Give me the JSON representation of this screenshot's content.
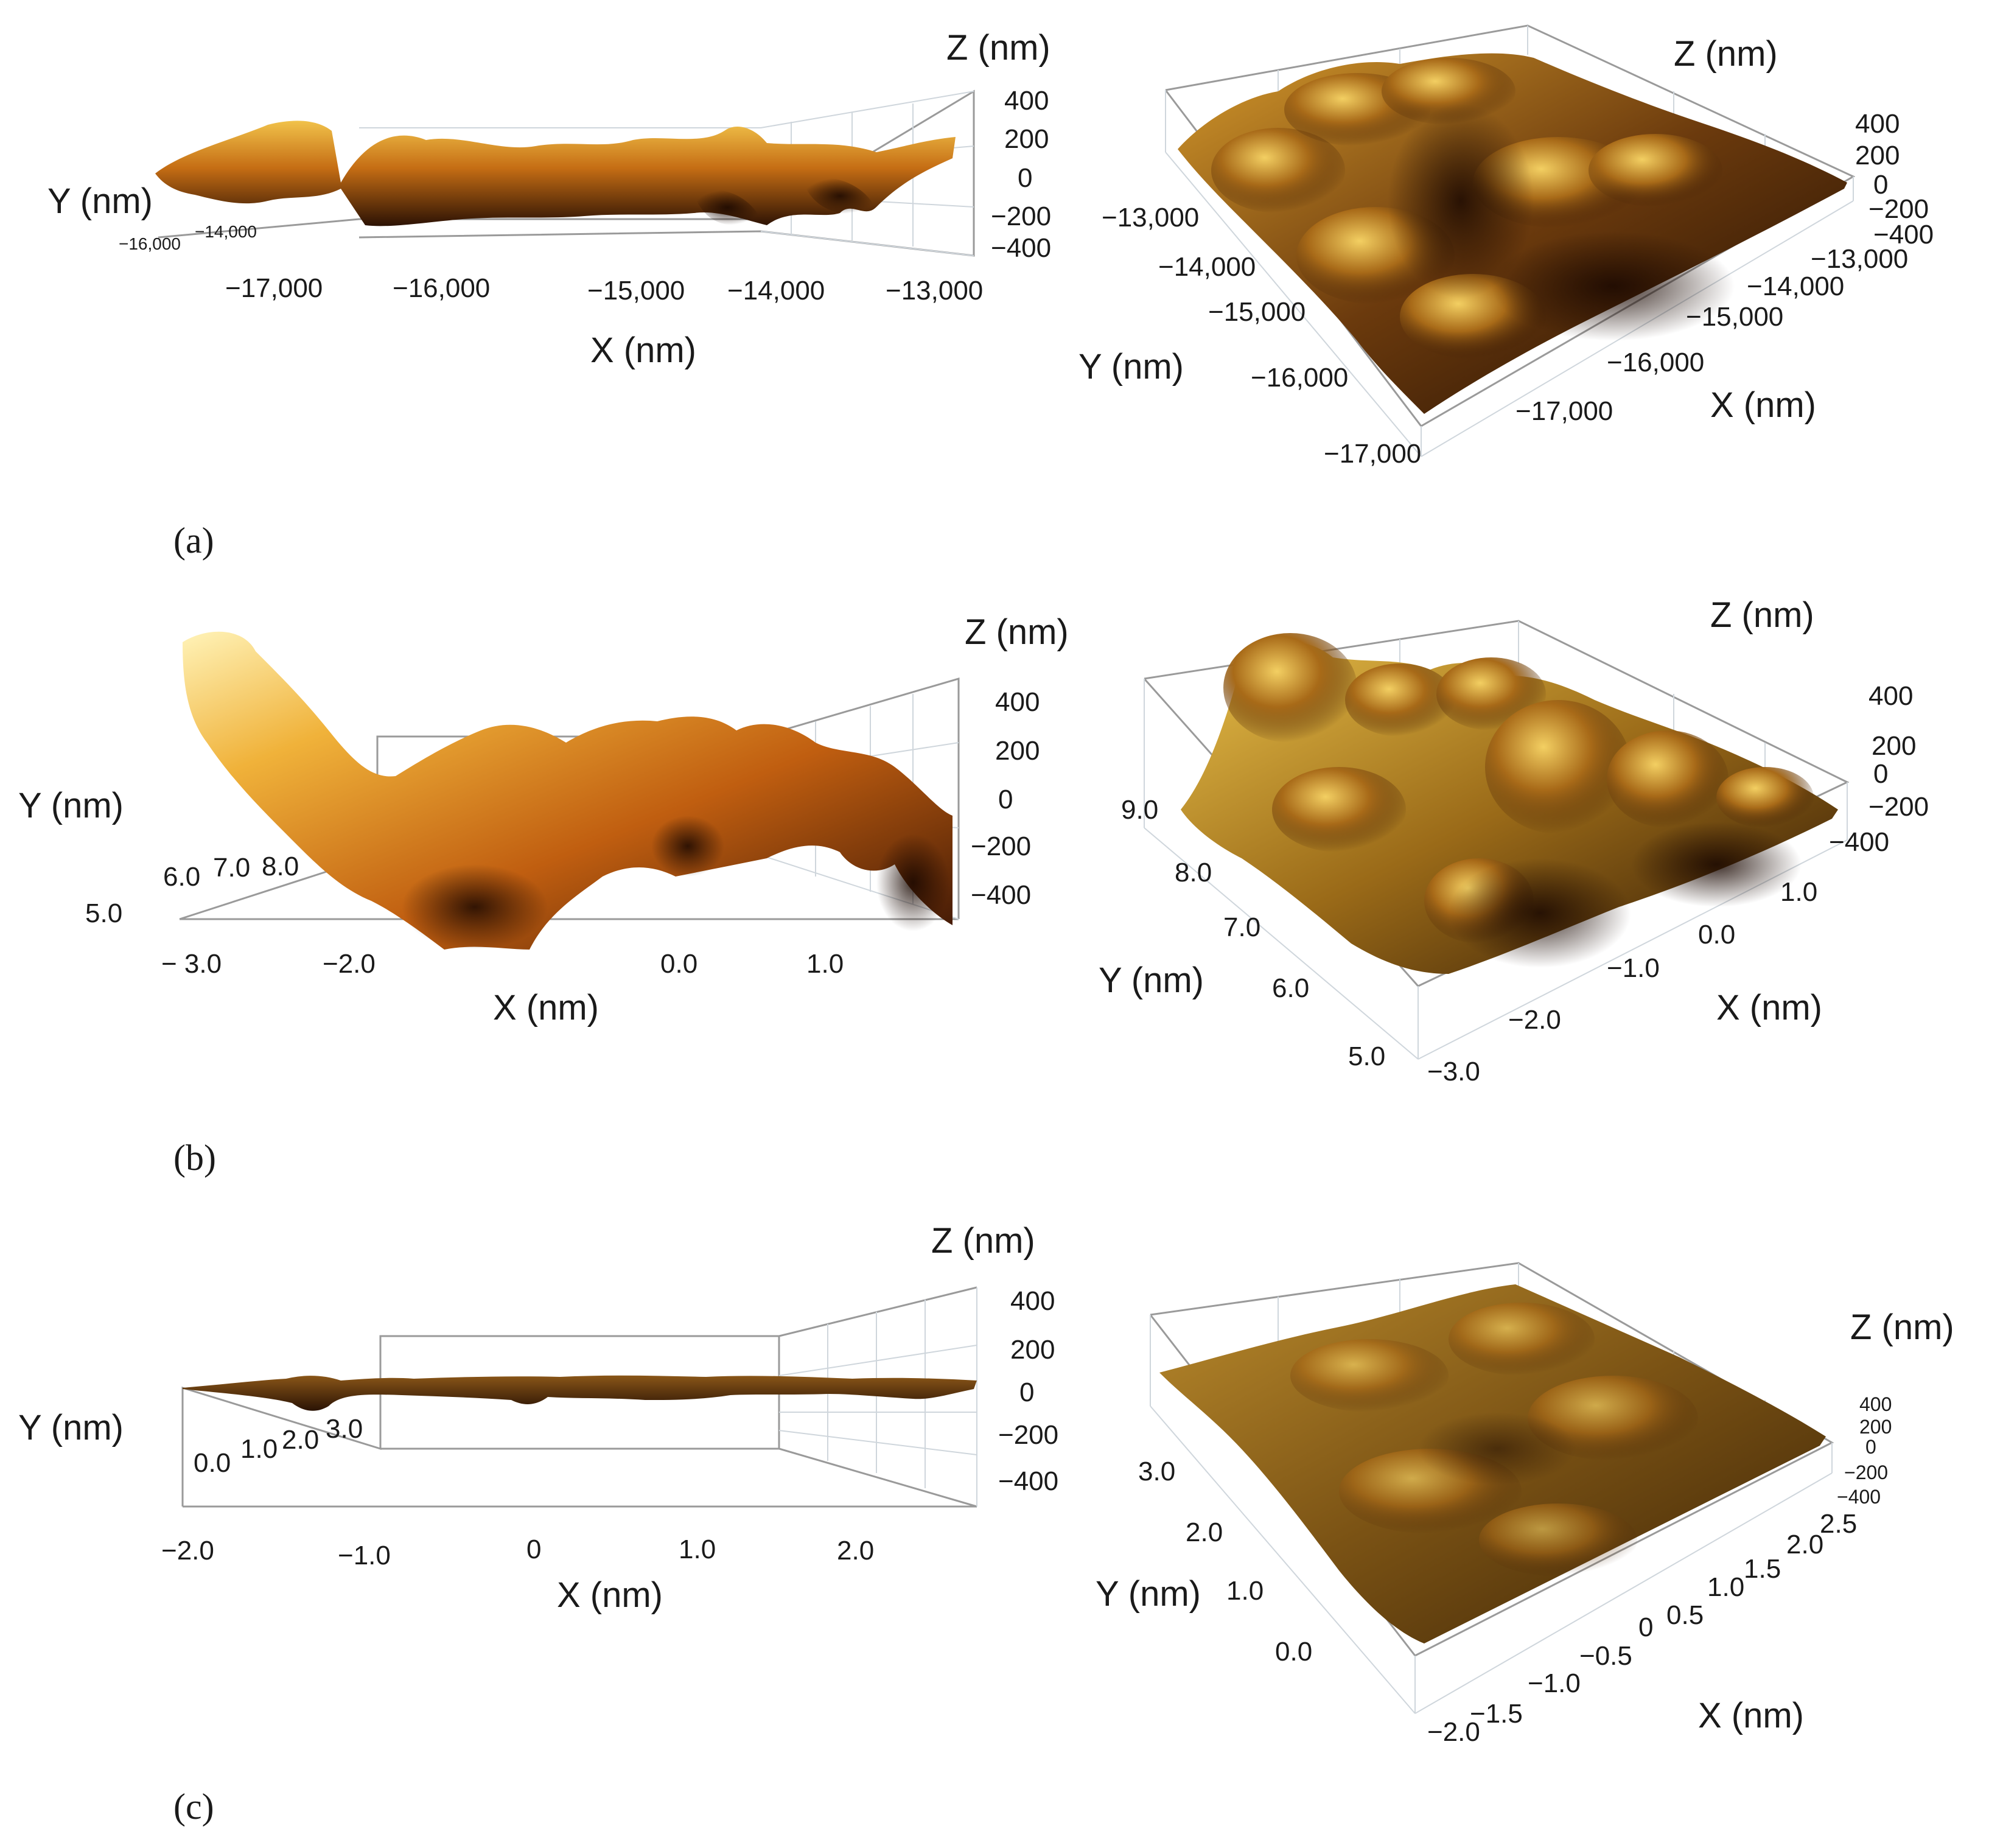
{
  "colors": {
    "surface_light": "#f4d25a",
    "surface_mid": "#c97a18",
    "surface_dark": "#3a1805",
    "surface_deep": "#1e0c02",
    "box_line": "#9a9a9a",
    "grid_line": "#cfd6dc",
    "text": "#1a1a1a"
  },
  "chart_data": [
    {
      "panel": "(a)",
      "view": "side",
      "type": "surface3d",
      "xlabel": "X (nm)",
      "ylabel": "Y (nm)",
      "zlabel": "Z (nm)",
      "x_ticks": [
        "−17,000",
        "−16,000",
        "−15,000",
        "−14,000",
        "−13,000"
      ],
      "y_ticks": [
        "−16,000",
        "−14,000"
      ],
      "z_ticks": [
        "400",
        "200",
        "0",
        "−200",
        "−400"
      ]
    },
    {
      "panel": "(a)",
      "view": "perspective",
      "type": "surface3d",
      "xlabel": "X (nm)",
      "ylabel": "Y (nm)",
      "zlabel": "Z (nm)",
      "x_ticks": [
        "−13,000",
        "−14,000",
        "−15,000",
        "−16,000",
        "−17,000"
      ],
      "y_ticks": [
        "−13,000",
        "−14,000",
        "−15,000",
        "−16,000",
        "−17,000"
      ],
      "z_ticks": [
        "400",
        "200",
        "0",
        "−200",
        "−400"
      ]
    },
    {
      "panel": "(b)",
      "view": "side",
      "type": "surface3d",
      "xlabel": "X (nm)",
      "ylabel": "Y (nm)",
      "zlabel": "Z (nm)",
      "x_ticks": [
        "− 3.0",
        "−2.0",
        "0.0",
        "1.0"
      ],
      "y_ticks": [
        "5.0",
        "6.0",
        "7.0",
        "8.0"
      ],
      "z_ticks": [
        "400",
        "200",
        "0",
        "−200",
        "−400"
      ]
    },
    {
      "panel": "(b)",
      "view": "perspective",
      "type": "surface3d",
      "xlabel": "X (nm)",
      "ylabel": "Y (nm)",
      "zlabel": "Z (nm)",
      "x_ticks": [
        "1.0",
        "0.0",
        "−1.0",
        "−2.0",
        "−3.0"
      ],
      "y_ticks": [
        "9.0",
        "8.0",
        "7.0",
        "6.0",
        "5.0"
      ],
      "z_ticks": [
        "400",
        "200",
        "0",
        "−200",
        "−400"
      ]
    },
    {
      "panel": "(c)",
      "view": "side",
      "type": "surface3d",
      "xlabel": "X (nm)",
      "ylabel": "Y (nm)",
      "zlabel": "Z (nm)",
      "x_ticks": [
        "−2.0",
        "−1.0",
        "0",
        "1.0",
        "2.0"
      ],
      "y_ticks": [
        "0.0",
        "1.0",
        "2.0",
        "3.0"
      ],
      "z_ticks": [
        "400",
        "200",
        "0",
        "−200",
        "−400"
      ]
    },
    {
      "panel": "(c)",
      "view": "perspective",
      "type": "surface3d",
      "xlabel": "X (nm)",
      "ylabel": "Y (nm)",
      "zlabel": "Z (nm)",
      "x_ticks": [
        "2.5",
        "2.0",
        "1.5",
        "1.0",
        "0.5",
        "0",
        "−0.5",
        "−1.0",
        "−1.5",
        "−2.0"
      ],
      "y_ticks": [
        "3.0",
        "2.0",
        "1.0",
        "0.0"
      ],
      "z_ticks": [
        "400",
        "200",
        "0",
        "−200",
        "−400"
      ]
    }
  ],
  "panel_labels": [
    "(a)",
    "(b)",
    "(c)"
  ]
}
